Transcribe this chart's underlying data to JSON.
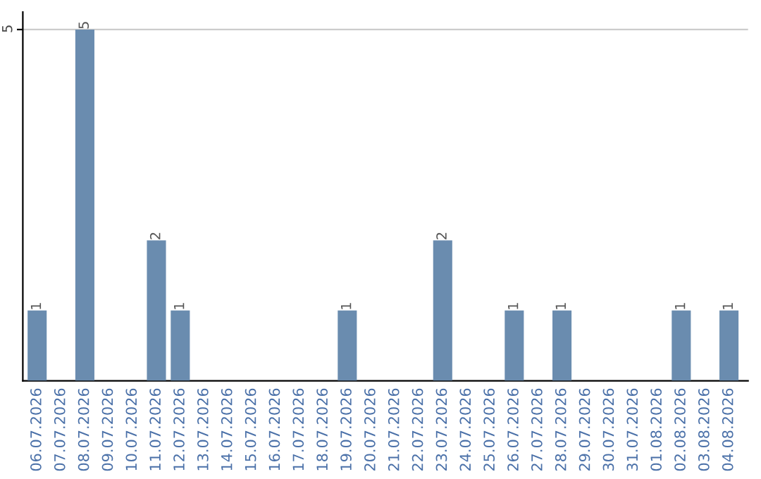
{
  "chart_data": {
    "type": "bar",
    "categories": [
      "06.07.2026",
      "07.07.2026",
      "08.07.2026",
      "09.07.2026",
      "10.07.2026",
      "11.07.2026",
      "12.07.2026",
      "13.07.2026",
      "14.07.2026",
      "15.07.2026",
      "16.07.2026",
      "17.07.2026",
      "18.07.2026",
      "19.07.2026",
      "20.07.2026",
      "21.07.2026",
      "22.07.2026",
      "23.07.2026",
      "24.07.2026",
      "25.07.2026",
      "26.07.2026",
      "27.07.2026",
      "28.07.2026",
      "29.07.2026",
      "30.07.2026",
      "31.07.2026",
      "01.08.2026",
      "02.08.2026",
      "03.08.2026",
      "04.08.2026"
    ],
    "values": [
      1,
      0,
      5,
      0,
      0,
      2,
      1,
      0,
      0,
      0,
      0,
      0,
      0,
      1,
      0,
      0,
      0,
      2,
      0,
      0,
      1,
      0,
      1,
      0,
      0,
      0,
      0,
      1,
      0,
      1
    ],
    "value_labels": [
      "1",
      null,
      "5",
      null,
      null,
      "2",
      "1",
      null,
      null,
      null,
      null,
      null,
      null,
      "1",
      null,
      null,
      null,
      "2",
      null,
      null,
      "1",
      null,
      "1",
      null,
      null,
      null,
      null,
      "1",
      null,
      "1"
    ],
    "color": "#6a8caf",
    "ylim": [
      0,
      5.25
    ],
    "yticks": [
      5
    ],
    "grid": "y",
    "legend": false
  }
}
